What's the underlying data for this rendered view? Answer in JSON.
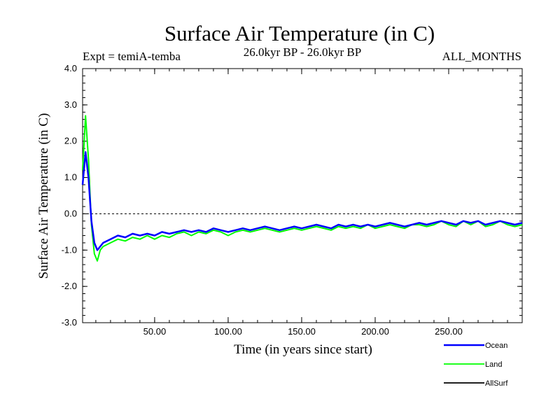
{
  "chart_data": {
    "type": "line",
    "title": "Surface Air Temperature (in C)",
    "expt_label": "Expt = temiA-temba",
    "period_label": "26.0kyr BP - 26.0kyr BP",
    "months_label": "ALL_MONTHS",
    "xlabel": "Time (in years since start)",
    "ylabel": "Surface Air Temperature (in C)",
    "xlim": [
      1,
      300
    ],
    "ylim": [
      -3.0,
      4.0
    ],
    "x_ticks": [
      50,
      100,
      150,
      200,
      250
    ],
    "x_tick_labels": [
      "50.00",
      "100.00",
      "150.00",
      "200.00",
      "250.00"
    ],
    "y_ticks": [
      -3,
      -2,
      -1,
      0,
      1,
      2,
      3,
      4
    ],
    "y_tick_labels": [
      "-3.0",
      "-2.0",
      "-1.0",
      "0.0",
      "1.0",
      "2.0",
      "3.0",
      "4.0"
    ],
    "reference_line": 0.0,
    "series": [
      {
        "name": "Ocean",
        "color": "#0000ff",
        "x": [
          1,
          3,
          5,
          7,
          9,
          11,
          13,
          15,
          20,
          25,
          30,
          35,
          40,
          45,
          50,
          55,
          60,
          65,
          70,
          75,
          80,
          85,
          90,
          95,
          100,
          105,
          110,
          115,
          120,
          125,
          130,
          135,
          140,
          145,
          150,
          155,
          160,
          165,
          170,
          175,
          180,
          185,
          190,
          195,
          200,
          205,
          210,
          215,
          220,
          225,
          230,
          235,
          240,
          245,
          250,
          255,
          260,
          265,
          270,
          275,
          280,
          285,
          290,
          295,
          300
        ],
        "values": [
          0.8,
          1.7,
          1.0,
          -0.2,
          -0.8,
          -1.0,
          -0.9,
          -0.8,
          -0.7,
          -0.6,
          -0.65,
          -0.55,
          -0.6,
          -0.55,
          -0.6,
          -0.5,
          -0.55,
          -0.5,
          -0.45,
          -0.5,
          -0.45,
          -0.5,
          -0.4,
          -0.45,
          -0.5,
          -0.45,
          -0.4,
          -0.45,
          -0.4,
          -0.35,
          -0.4,
          -0.45,
          -0.4,
          -0.35,
          -0.4,
          -0.35,
          -0.3,
          -0.35,
          -0.4,
          -0.3,
          -0.35,
          -0.3,
          -0.35,
          -0.3,
          -0.35,
          -0.3,
          -0.25,
          -0.3,
          -0.35,
          -0.3,
          -0.25,
          -0.3,
          -0.25,
          -0.2,
          -0.25,
          -0.3,
          -0.2,
          -0.25,
          -0.2,
          -0.3,
          -0.25,
          -0.2,
          -0.25,
          -0.3,
          -0.25
        ]
      },
      {
        "name": "Land",
        "color": "#00ff00",
        "x": [
          1,
          3,
          5,
          7,
          9,
          11,
          13,
          15,
          20,
          25,
          30,
          35,
          40,
          45,
          50,
          55,
          60,
          65,
          70,
          75,
          80,
          85,
          90,
          95,
          100,
          105,
          110,
          115,
          120,
          125,
          130,
          135,
          140,
          145,
          150,
          155,
          160,
          165,
          170,
          175,
          180,
          185,
          190,
          195,
          200,
          205,
          210,
          215,
          220,
          225,
          230,
          235,
          240,
          245,
          250,
          255,
          260,
          265,
          270,
          275,
          280,
          285,
          290,
          295,
          300
        ],
        "values": [
          1.2,
          2.7,
          1.5,
          -0.3,
          -1.1,
          -1.3,
          -1.0,
          -0.9,
          -0.8,
          -0.7,
          -0.75,
          -0.65,
          -0.7,
          -0.6,
          -0.7,
          -0.6,
          -0.65,
          -0.55,
          -0.5,
          -0.6,
          -0.5,
          -0.55,
          -0.45,
          -0.5,
          -0.6,
          -0.5,
          -0.45,
          -0.5,
          -0.45,
          -0.4,
          -0.45,
          -0.5,
          -0.45,
          -0.4,
          -0.45,
          -0.4,
          -0.35,
          -0.4,
          -0.45,
          -0.35,
          -0.4,
          -0.35,
          -0.4,
          -0.3,
          -0.4,
          -0.35,
          -0.3,
          -0.35,
          -0.4,
          -0.3,
          -0.3,
          -0.35,
          -0.3,
          -0.2,
          -0.3,
          -0.35,
          -0.2,
          -0.3,
          -0.2,
          -0.35,
          -0.3,
          -0.2,
          -0.3,
          -0.35,
          -0.3
        ]
      },
      {
        "name": "AllSurf",
        "color": "#000000",
        "x": [],
        "values": []
      }
    ]
  }
}
